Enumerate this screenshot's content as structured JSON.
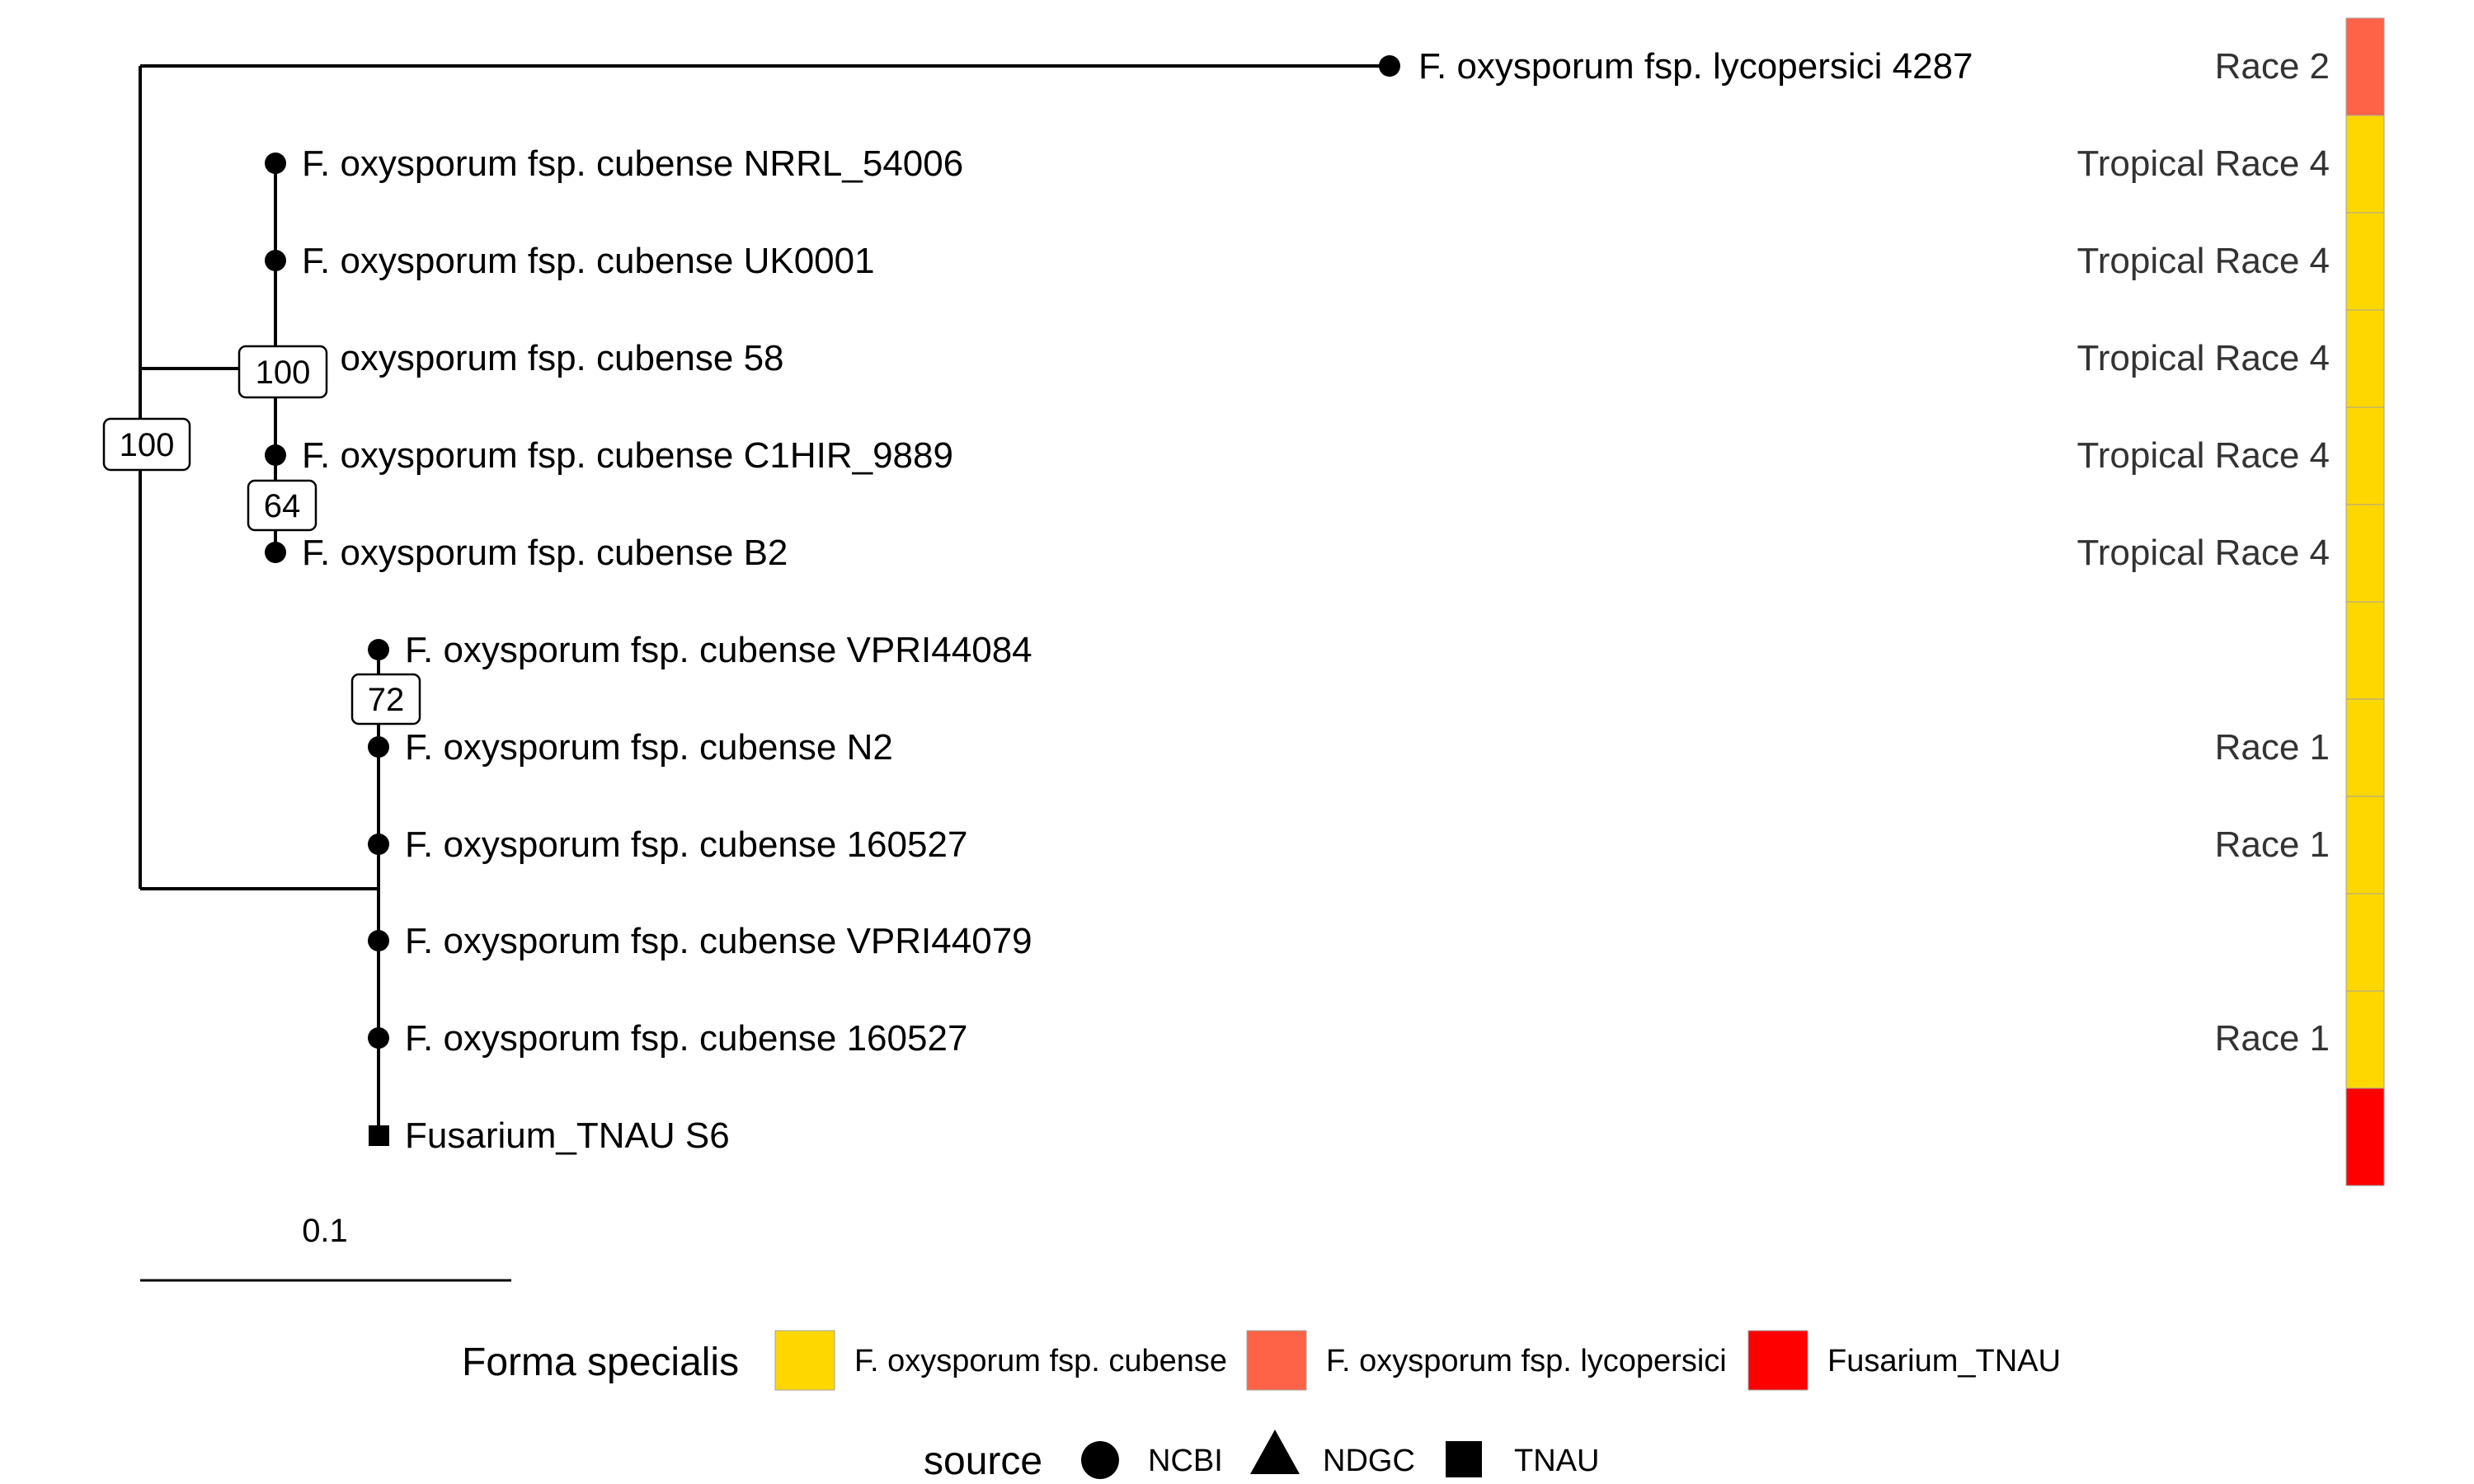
{
  "tips": [
    {
      "id": "t1",
      "label": "F. oxysporum fsp. lycopersici 4287",
      "race": "Race 2",
      "source": "NCBI",
      "forma": "lycopersici"
    },
    {
      "id": "t2",
      "label": "F. oxysporum fsp. cubense NRRL_54006",
      "race": "Tropical Race 4",
      "source": "NCBI",
      "forma": "cubense"
    },
    {
      "id": "t3",
      "label": "F. oxysporum fsp. cubense UK0001",
      "race": "Tropical Race 4",
      "source": "NCBI",
      "forma": "cubense"
    },
    {
      "id": "t4",
      "label": "F. oxysporum fsp. cubense 58",
      "race": "Tropical Race 4",
      "source": "NCBI",
      "forma": "cubense"
    },
    {
      "id": "t5",
      "label": "F. oxysporum fsp. cubense C1HIR_9889",
      "race": "Tropical Race 4",
      "source": "NCBI",
      "forma": "cubense"
    },
    {
      "id": "t6",
      "label": "F. oxysporum fsp. cubense B2",
      "race": "Tropical Race 4",
      "source": "NCBI",
      "forma": "cubense"
    },
    {
      "id": "t7",
      "label": "F. oxysporum fsp. cubense VPRI44084",
      "race": "",
      "source": "NCBI",
      "forma": "cubense"
    },
    {
      "id": "t8",
      "label": "F. oxysporum fsp. cubense N2",
      "race": "Race 1",
      "source": "NCBI",
      "forma": "cubense"
    },
    {
      "id": "t9",
      "label": "F. oxysporum fsp. cubense 160527",
      "race": "Race 1",
      "source": "NCBI",
      "forma": "cubense"
    },
    {
      "id": "t10",
      "label": "F. oxysporum fsp. cubense VPRI44079",
      "race": "",
      "source": "NCBI",
      "forma": "cubense"
    },
    {
      "id": "t11",
      "label": "F. oxysporum fsp. cubense 160527",
      "race": "Race 1",
      "source": "NCBI",
      "forma": "cubense"
    },
    {
      "id": "t12",
      "label": "Fusarium_TNAU S6",
      "race": "",
      "source": "TNAU",
      "forma": "tnau"
    }
  ],
  "support_values": [
    "100",
    "100",
    "64",
    "72"
  ],
  "scale_bar_label": "0.1",
  "legend": {
    "forma_title": "Forma specialis",
    "forma_items": [
      {
        "key": "cubense",
        "label": "F. oxysporum fsp. cubense",
        "color": "#FFD700"
      },
      {
        "key": "lycopersici",
        "label": "F. oxysporum fsp. lycopersici",
        "color": "#FF6347"
      },
      {
        "key": "tnau",
        "label": "Fusarium_TNAU",
        "color": "#FF0000"
      }
    ],
    "source_title": "source",
    "source_items": [
      {
        "key": "NCBI",
        "label": "NCBI",
        "shape": "circle"
      },
      {
        "key": "NDGC",
        "label": "NDGC",
        "shape": "triangle"
      },
      {
        "key": "TNAU",
        "label": "TNAU",
        "shape": "square"
      }
    ]
  },
  "colors": {
    "cubense": "#FFD700",
    "lycopersici": "#FF6347",
    "tnau": "#FF0000",
    "branch": "#000000"
  }
}
